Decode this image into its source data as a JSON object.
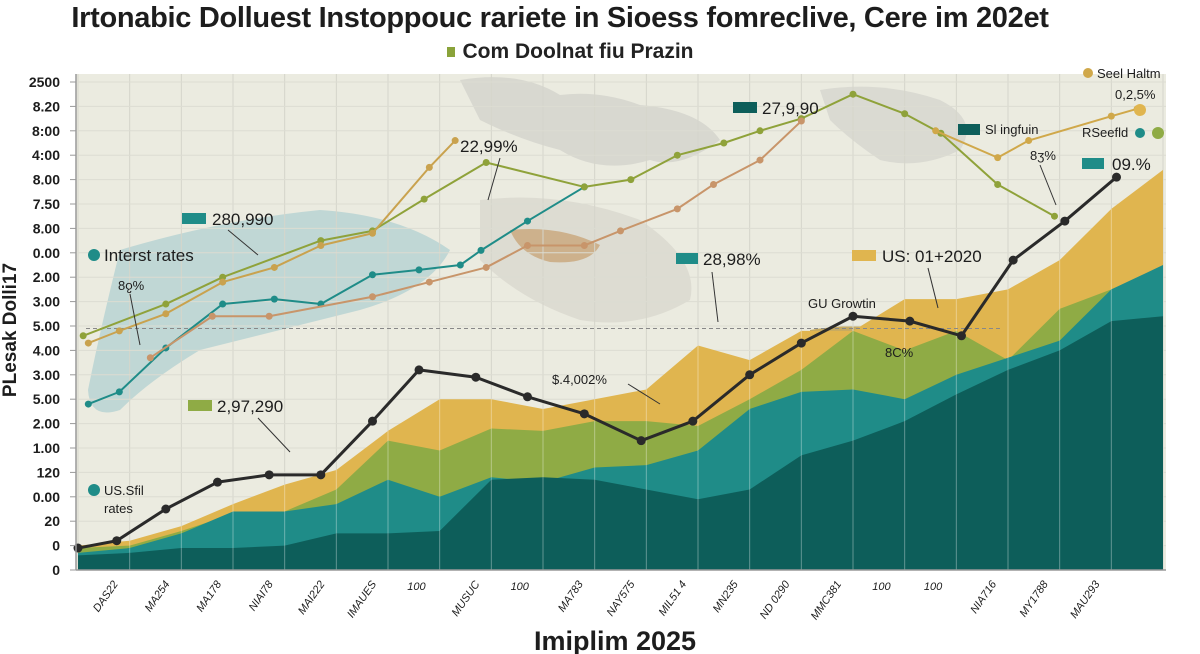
{
  "chart_data": {
    "type": "area",
    "title": "Irtonabic Dolluest Instoppouc rariete in Sioess fomreclive, Cere im 202et",
    "subtitle": "Com Doolnat fiu Prazin",
    "xlabel": "Imiplim 2025",
    "ylabel": "PLesak Dolli17",
    "x_ticks": [
      "DAS22",
      "MA254",
      "MA178",
      "NIAI78",
      "MAI222",
      "IMAUES",
      "100",
      "MUSUC",
      "100",
      "MA783",
      "NAY575",
      "MIL51 4",
      "MN235",
      "ND 0290",
      "MMC381",
      "100",
      "100",
      "NIA716",
      "MY1788",
      "MAU293"
    ],
    "y_ticks": [
      "0",
      "0",
      "20",
      "0.00",
      "120",
      "1.00",
      "2.00",
      "5.00",
      "3.00",
      "4.00",
      "5.00",
      "3.00",
      "2.00",
      "0.00",
      "8.00",
      "7.50",
      "8.00",
      "4:00",
      "8:00",
      "8.20",
      "2500"
    ],
    "xlim": [
      0,
      21
    ],
    "ylim": [
      0,
      20
    ],
    "grid": true,
    "reference_line": 9.9,
    "areas": [
      {
        "color": "#e0b54f",
        "values": [
          1.0,
          1.2,
          1.8,
          2.7,
          3.5,
          4.1,
          5.7,
          7.0,
          7.0,
          6.6,
          7.0,
          7.4,
          9.2,
          8.6,
          9.8,
          9.8,
          11.1,
          11.1,
          11.5,
          12.7,
          14.8,
          16.4
        ]
      },
      {
        "color": "#8fab45",
        "values": [
          0.9,
          1.0,
          1.6,
          2.3,
          2.4,
          3.3,
          5.3,
          4.9,
          5.8,
          5.7,
          6.1,
          6.1,
          5.9,
          7.0,
          8.2,
          9.8,
          9.0,
          9.8,
          8.6,
          10.7,
          11.5,
          12.4
        ]
      },
      {
        "color": "#1f8c88",
        "values": [
          0.7,
          0.9,
          1.5,
          2.4,
          2.4,
          2.7,
          3.7,
          3.0,
          3.8,
          3.6,
          4.2,
          4.3,
          4.9,
          6.6,
          7.3,
          7.4,
          7.0,
          8.0,
          8.7,
          9.4,
          11.5,
          12.5
        ]
      },
      {
        "color": "#0d5e5a",
        "values": [
          0.6,
          0.7,
          0.9,
          0.9,
          1.0,
          1.5,
          1.5,
          1.6,
          3.7,
          3.8,
          3.7,
          3.3,
          2.9,
          3.3,
          4.7,
          5.3,
          6.1,
          7.2,
          8.2,
          9.0,
          10.2,
          10.4
        ]
      }
    ],
    "lines": [
      {
        "color": "#2a2a2a",
        "width": 3,
        "points": [
          [
            0,
            0.9
          ],
          [
            0.75,
            1.2
          ],
          [
            1.7,
            2.5
          ],
          [
            2.7,
            3.6
          ],
          [
            3.7,
            3.9
          ],
          [
            4.7,
            3.9
          ],
          [
            5.7,
            6.1
          ],
          [
            6.6,
            8.2
          ],
          [
            7.7,
            7.9
          ],
          [
            8.7,
            7.1
          ],
          [
            9.8,
            6.4
          ],
          [
            10.9,
            5.3
          ],
          [
            11.9,
            6.1
          ],
          [
            13.0,
            8.0
          ],
          [
            14.0,
            9.3
          ],
          [
            15.0,
            10.4
          ],
          [
            16.1,
            10.2
          ],
          [
            17.1,
            9.6
          ],
          [
            18.1,
            12.7
          ],
          [
            19.1,
            14.3
          ],
          [
            20.1,
            16.1
          ]
        ]
      },
      {
        "color": "#1f8c88",
        "width": 2,
        "points": [
          [
            0.2,
            6.8
          ],
          [
            0.8,
            7.3
          ],
          [
            1.7,
            9.1
          ],
          [
            2.8,
            10.9
          ],
          [
            3.8,
            11.1
          ],
          [
            4.7,
            10.9
          ],
          [
            5.7,
            12.1
          ],
          [
            6.6,
            12.3
          ],
          [
            7.4,
            12.5
          ],
          [
            7.8,
            13.1
          ],
          [
            8.7,
            14.3
          ],
          [
            9.8,
            15.7
          ]
        ]
      },
      {
        "color": "#8fa23a",
        "width": 2,
        "points": [
          [
            0.1,
            9.6
          ],
          [
            1.7,
            10.9
          ],
          [
            2.8,
            12.0
          ],
          [
            4.7,
            13.5
          ],
          [
            5.7,
            13.9
          ],
          [
            6.7,
            15.2
          ],
          [
            7.9,
            16.7
          ],
          [
            9.8,
            15.7
          ],
          [
            10.7,
            16.0
          ],
          [
            11.6,
            17.0
          ],
          [
            12.5,
            17.5
          ],
          [
            13.2,
            18.0
          ],
          [
            14.0,
            18.5
          ],
          [
            15.0,
            19.5
          ],
          [
            16.0,
            18.7
          ],
          [
            16.7,
            17.9
          ],
          [
            17.8,
            15.8
          ],
          [
            18.9,
            14.5
          ]
        ]
      },
      {
        "color": "#c9a24e",
        "width": 2,
        "points": [
          [
            0.2,
            9.3
          ],
          [
            0.8,
            9.8
          ],
          [
            1.7,
            10.5
          ],
          [
            2.8,
            11.8
          ],
          [
            3.8,
            12.4
          ],
          [
            4.7,
            13.3
          ],
          [
            5.7,
            13.8
          ],
          [
            6.8,
            16.5
          ],
          [
            7.3,
            17.6
          ]
        ]
      },
      {
        "color": "#c8956a",
        "width": 2,
        "points": [
          [
            1.4,
            8.7
          ],
          [
            2.6,
            10.4
          ],
          [
            3.7,
            10.4
          ],
          [
            5.7,
            11.2
          ],
          [
            6.8,
            11.8
          ],
          [
            7.9,
            12.4
          ],
          [
            8.7,
            13.3
          ],
          [
            9.8,
            13.3
          ],
          [
            10.5,
            13.9
          ],
          [
            11.6,
            14.8
          ],
          [
            12.3,
            15.8
          ],
          [
            13.2,
            16.8
          ],
          [
            14.0,
            18.4
          ]
        ]
      },
      {
        "color": "#d0a84a",
        "width": 2,
        "points": [
          [
            16.6,
            18.0
          ],
          [
            17.8,
            16.9
          ],
          [
            18.4,
            17.6
          ],
          [
            20.0,
            18.6
          ],
          [
            20.5,
            18.9
          ]
        ]
      }
    ],
    "annotations": {
      "a1": "22,99%",
      "a2": "27,9,90",
      "a3": "280,990",
      "a4": "Interst rates",
      "a5": "8ჹ%",
      "a6": "28,98%",
      "a7": "US: 01+2020",
      "a8": "GU Growtin",
      "a9": "8C%",
      "a10": "$.4,002%",
      "a11": "2,97,290",
      "a12": "US.Sfil",
      "a13": "rates",
      "a14": "Sl ingfuin",
      "a15": "Seel Haltm",
      "a16": "0,2,5%",
      "a17": "RSeefld",
      "a18": "09.%",
      "a19": "8ʒ%"
    }
  }
}
